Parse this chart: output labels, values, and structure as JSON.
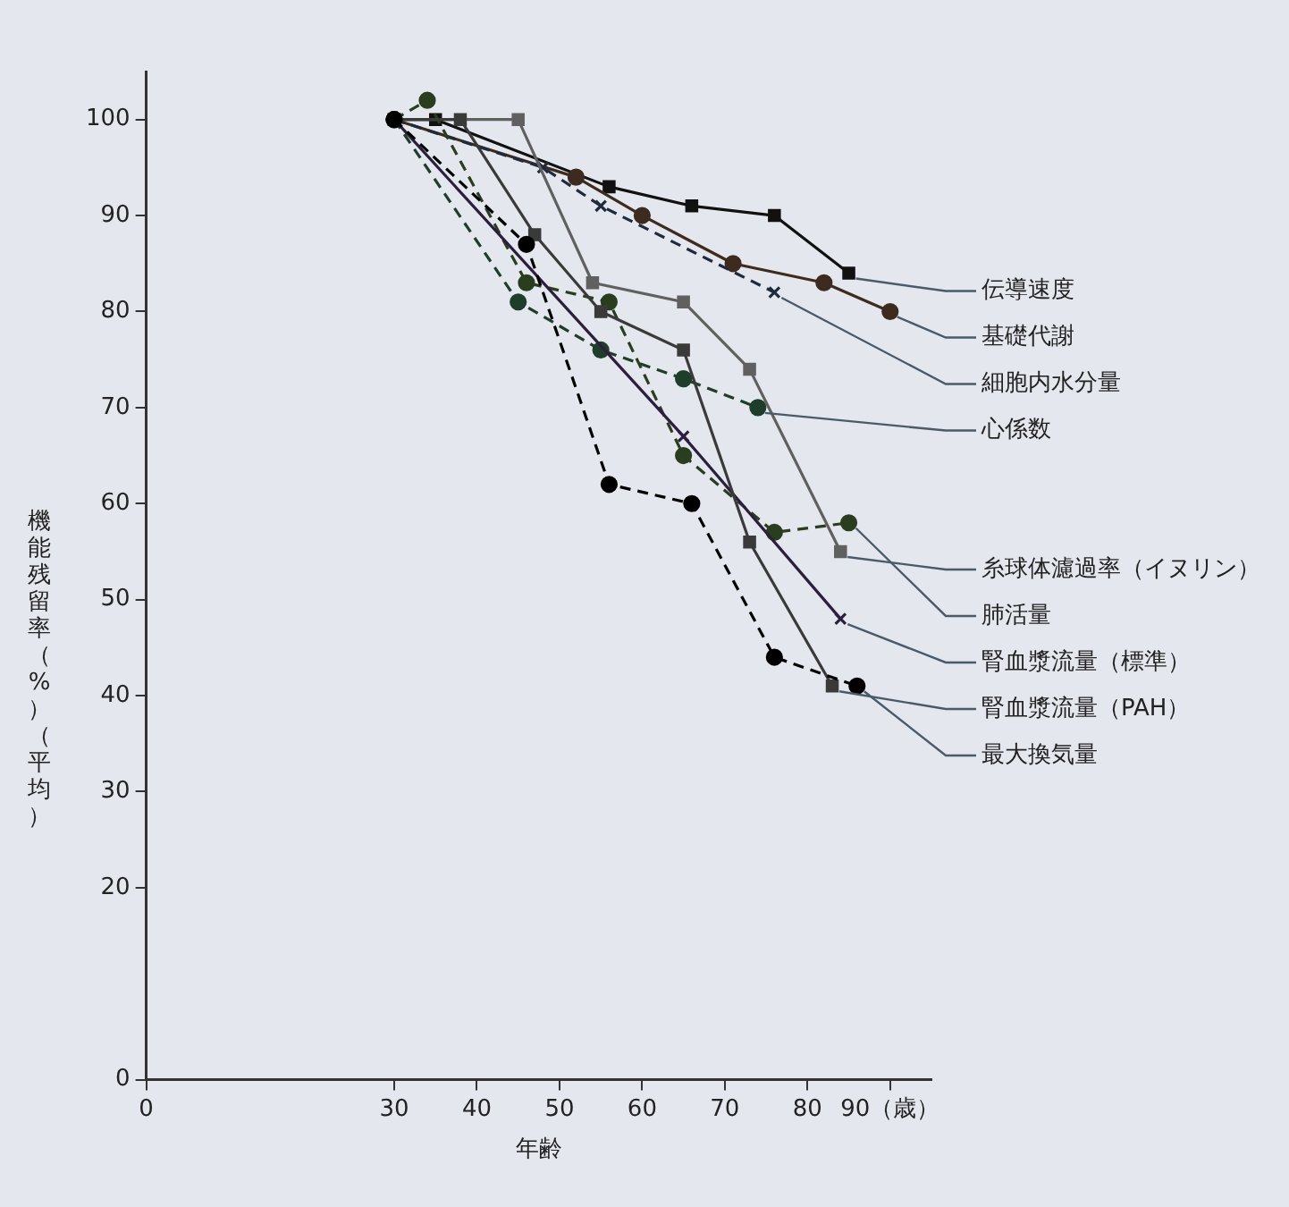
{
  "chart_data": {
    "type": "line",
    "xlabel": "年齢",
    "ylabel": "機能残留率（%）（平均）",
    "xlim": [
      0,
      95
    ],
    "xticks": [
      0,
      30,
      40,
      50,
      60,
      70,
      80,
      {
        "value": 90,
        "label": "90（歳）"
      }
    ],
    "ylim": [
      0,
      105
    ],
    "yticks": [
      0,
      20,
      30,
      40,
      50,
      60,
      70,
      80,
      90,
      100
    ],
    "grid": false,
    "legend": false,
    "series": [
      {
        "name": "伝導速度",
        "color": "#111111",
        "marker": "square",
        "line_style": "solid",
        "x": [
          30,
          35,
          56,
          66,
          76,
          85
        ],
        "values": [
          100,
          100,
          93,
          91,
          90,
          84
        ]
      },
      {
        "name": "基礎代謝",
        "color": "#3d2b1f",
        "marker": "circle",
        "line_style": "solid",
        "x": [
          30,
          52,
          60,
          71,
          82,
          90
        ],
        "values": [
          100,
          94,
          90,
          85,
          83,
          80
        ]
      },
      {
        "name": "細胞内水分量",
        "color": "#1f2b3d",
        "marker": "cross",
        "line_style": "dashed",
        "x": [
          30,
          48,
          55,
          76
        ],
        "values": [
          100,
          95,
          91,
          82
        ]
      },
      {
        "name": "心係数",
        "color": "#1f3d2b",
        "marker": "circle",
        "line_style": "dashed",
        "x": [
          30,
          45,
          55,
          65,
          74
        ],
        "values": [
          100,
          81,
          76,
          73,
          70
        ]
      },
      {
        "name": "糸球体濾過率（イヌリン）",
        "color": "#606060",
        "marker": "square",
        "line_style": "solid",
        "x": [
          30,
          45,
          54,
          65,
          73,
          84
        ],
        "values": [
          100,
          100,
          83,
          81,
          74,
          55
        ]
      },
      {
        "name": "肺活量",
        "color": "#2b3d1f",
        "marker": "circle",
        "line_style": "dashed",
        "x": [
          30,
          34,
          46,
          56,
          65,
          76,
          85
        ],
        "values": [
          100,
          102,
          83,
          81,
          65,
          57,
          58
        ]
      },
      {
        "name": "腎血漿流量（標準）",
        "color": "#2b1f3d",
        "marker": "cross",
        "line_style": "solid",
        "x": [
          30,
          65,
          84
        ],
        "values": [
          100,
          67,
          48
        ]
      },
      {
        "name": "腎血漿流量（PAH）",
        "color": "#3a3a3a",
        "marker": "square",
        "line_style": "solid",
        "x": [
          30,
          38,
          47,
          55,
          65,
          73,
          83
        ],
        "values": [
          100,
          100,
          88,
          80,
          76,
          56,
          41
        ]
      },
      {
        "name": "最大換気量",
        "color": "#000000",
        "marker": "circle",
        "line_style": "dashed",
        "x": [
          30,
          46,
          56,
          66,
          76,
          86
        ],
        "values": [
          100,
          87,
          62,
          60,
          44,
          41
        ]
      }
    ]
  }
}
